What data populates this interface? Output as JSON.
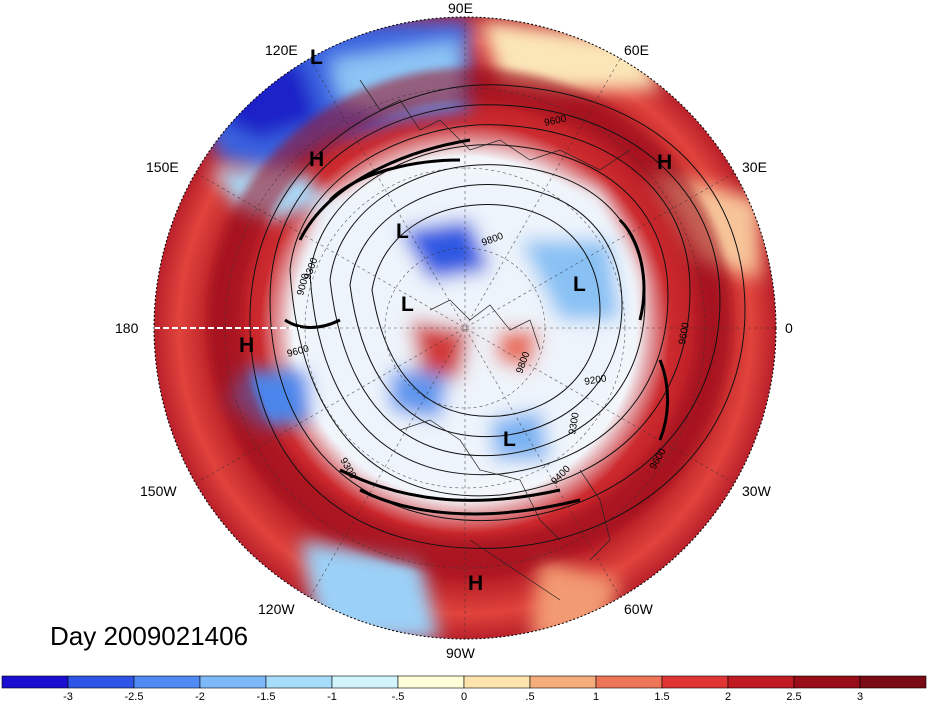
{
  "title": "Day 2009021406",
  "longitude_labels": [
    "90E",
    "120E",
    "60E",
    "150E",
    "30E",
    "180",
    "0",
    "150W",
    "30W",
    "120W",
    "60W",
    "90W"
  ],
  "pressure_markers": [
    {
      "label": "L",
      "region": "east-siberia-coast"
    },
    {
      "label": "H",
      "region": "northeast-asia"
    },
    {
      "label": "H",
      "region": "europe"
    },
    {
      "label": "L",
      "region": "arctic-siberia"
    },
    {
      "label": "L",
      "region": "barents-sea"
    },
    {
      "label": "L",
      "region": "arctic-alaska"
    },
    {
      "label": "H",
      "region": "north-pacific"
    },
    {
      "label": "L",
      "region": "labrador"
    },
    {
      "label": "H",
      "region": "gulf-of-mexico"
    }
  ],
  "contour_labels": [
    "9600",
    "9800",
    "9600",
    "9300",
    "9200",
    "9300",
    "9600",
    "9400",
    "9600",
    "9300",
    "9000",
    "9800"
  ],
  "colorbar": {
    "ticks": [
      "-3",
      "-2.5",
      "-2",
      "-1.5",
      "-1",
      "-.5",
      "0",
      ".5",
      "1",
      "1.5",
      "2",
      "2.5",
      "3"
    ],
    "colors": [
      "#1a0fd0",
      "#2f55e6",
      "#4f8bf2",
      "#7db8f8",
      "#a8dcfb",
      "#d2f4fc",
      "#fefed8",
      "#fde4ad",
      "#f6ad7c",
      "#ef7558",
      "#e13535",
      "#c01a22",
      "#990d19",
      "#7a0a14"
    ]
  }
}
